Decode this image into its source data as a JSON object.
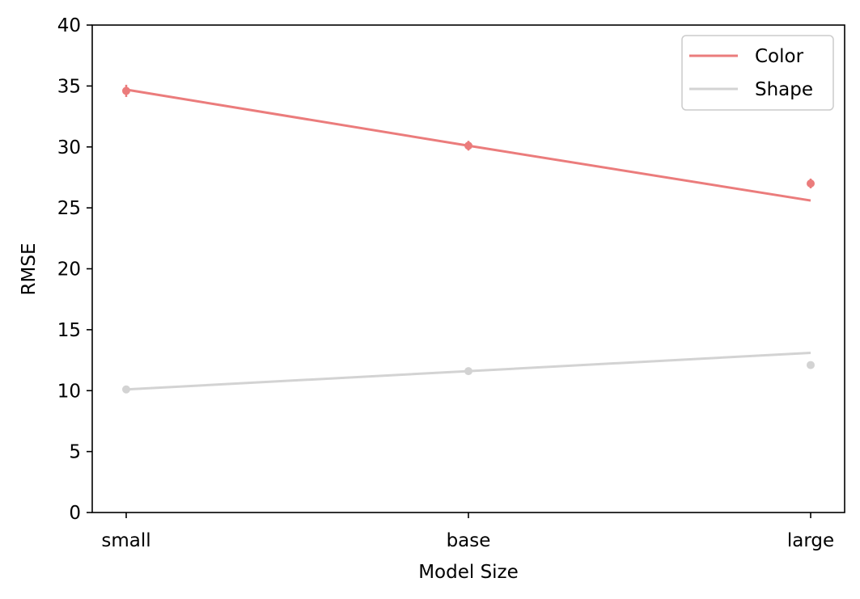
{
  "chart_data": {
    "type": "line",
    "xlabel": "Model Size",
    "ylabel": "RMSE",
    "categories": [
      "small",
      "base",
      "large"
    ],
    "ylim": [
      0,
      40
    ],
    "yticks": [
      0,
      5,
      10,
      15,
      20,
      25,
      30,
      35,
      40
    ],
    "grid": false,
    "legend_position": "top-right",
    "series": [
      {
        "name": "Color",
        "color": "#eb7c7c",
        "line": [
          34.7,
          30.1,
          25.6
        ],
        "points": [
          34.6,
          30.1,
          27.0
        ],
        "error": [
          0.5,
          0.4,
          0.4
        ]
      },
      {
        "name": "Shape",
        "color": "#d3d3d3",
        "line": [
          10.1,
          11.6,
          13.1
        ],
        "points": [
          10.1,
          11.6,
          12.1
        ],
        "error": [
          0.15,
          0.15,
          0.15
        ]
      }
    ]
  }
}
